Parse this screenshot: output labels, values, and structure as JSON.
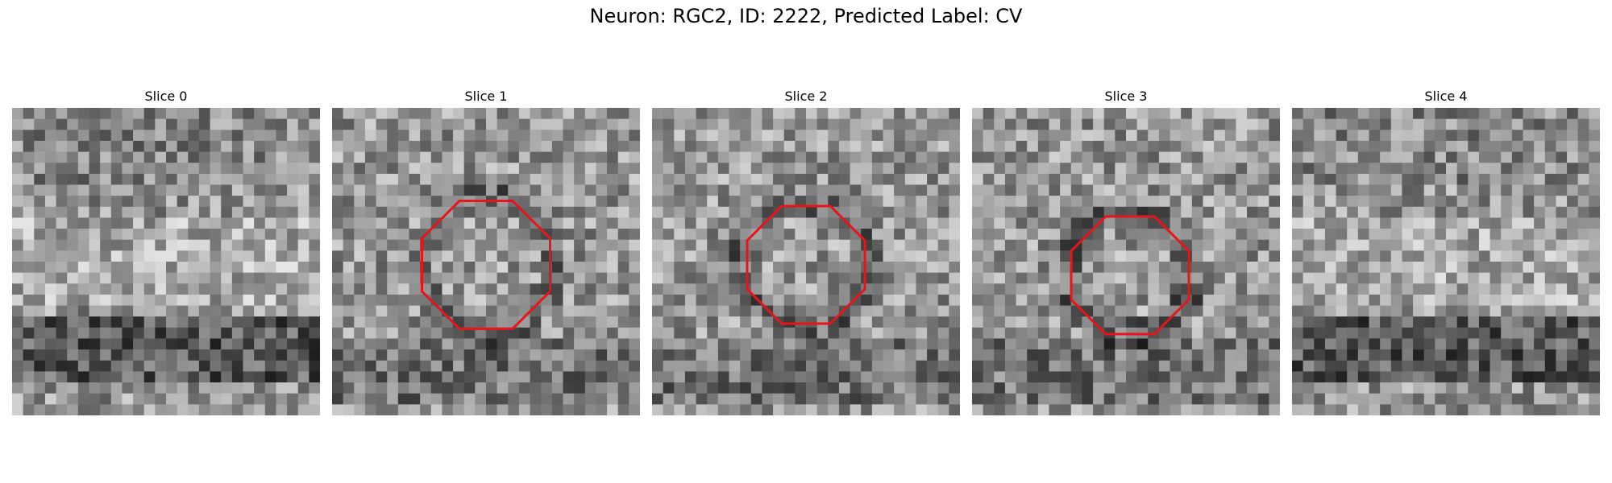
{
  "figure": {
    "title": "Neuron: RGC2, ID: 2222, Predicted Label: CV"
  },
  "slices": [
    {
      "label": "Slice 0",
      "has_outline": false,
      "band": "bottom-dark"
    },
    {
      "label": "Slice 1",
      "has_outline": true,
      "band": "ring"
    },
    {
      "label": "Slice 2",
      "has_outline": true,
      "band": "ring"
    },
    {
      "label": "Slice 3",
      "has_outline": true,
      "band": "ring"
    },
    {
      "label": "Slice 4",
      "has_outline": false,
      "band": "bottom-dark"
    }
  ],
  "image": {
    "colormap": "grayscale",
    "grid_cells": 28
  },
  "colors": {
    "outline": "#e8141a",
    "background": "#ffffff"
  }
}
